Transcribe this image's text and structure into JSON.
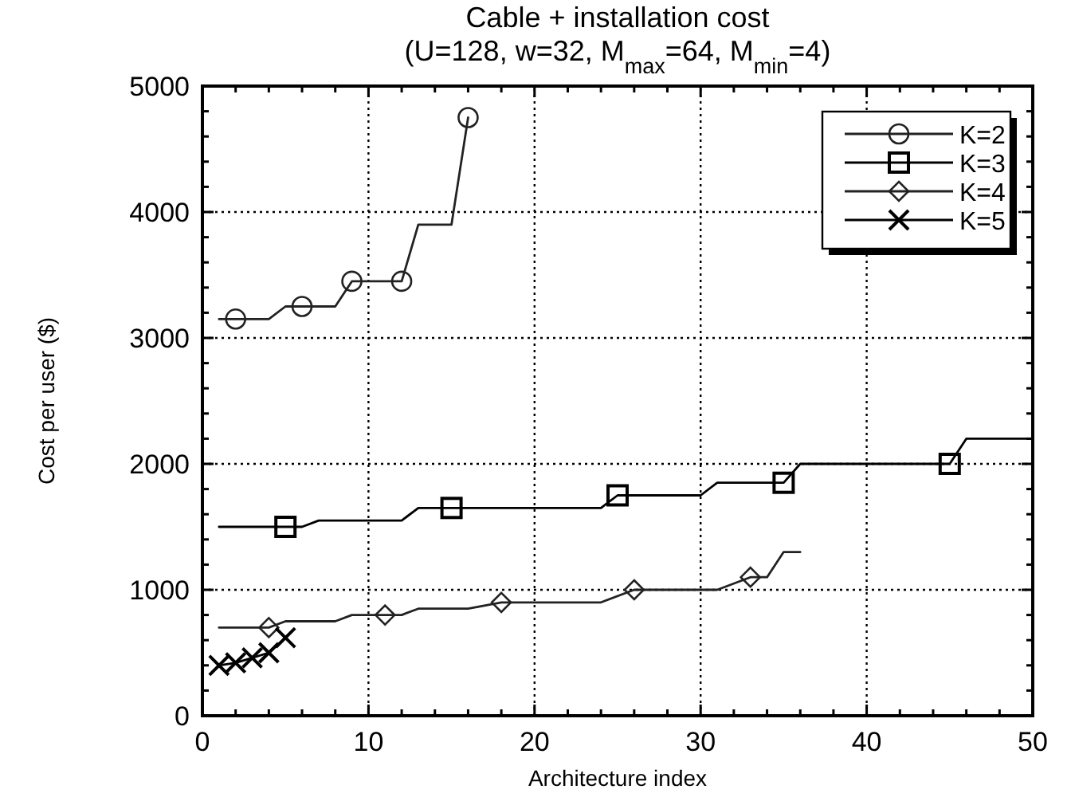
{
  "chart_data": {
    "type": "line",
    "title": "Cable + installation cost",
    "subtitle": "(U=128, w=32, M$_{max}$=64, M$_{min}$=4)",
    "xlabel": "Architecture index",
    "ylabel": "Cost per user ($)",
    "xlim": [
      0,
      50
    ],
    "ylim": [
      0,
      5000
    ],
    "xticks": [
      0,
      {
        "value": 2,
        "label": null
      },
      {
        "value": 4,
        "label": null
      },
      {
        "value": 6,
        "label": null
      },
      {
        "value": 8,
        "label": null
      },
      10,
      {
        "value": 12,
        "label": null
      },
      {
        "value": 14,
        "label": null
      },
      {
        "value": 16,
        "label": null
      },
      {
        "value": 18,
        "label": null
      },
      20,
      {
        "value": 22,
        "label": null
      },
      {
        "value": 24,
        "label": null
      },
      {
        "value": 26,
        "label": null
      },
      {
        "value": 28,
        "label": null
      },
      30,
      {
        "value": 32,
        "label": null
      },
      {
        "value": 34,
        "label": null
      },
      {
        "value": 36,
        "label": null
      },
      {
        "value": 38,
        "label": null
      },
      40,
      {
        "value": 42,
        "label": null
      },
      {
        "value": 44,
        "label": null
      },
      {
        "value": 46,
        "label": null
      },
      {
        "value": 48,
        "label": null
      },
      50
    ],
    "yticks": [
      0,
      {
        "value": 200,
        "label": null
      },
      {
        "value": 400,
        "label": null
      },
      {
        "value": 600,
        "label": null
      },
      {
        "value": 800,
        "label": null
      },
      1000,
      {
        "value": 1200,
        "label": null
      },
      {
        "value": 1400,
        "label": null
      },
      {
        "value": 1600,
        "label": null
      },
      {
        "value": 1800,
        "label": null
      },
      2000,
      {
        "value": 2200,
        "label": null
      },
      {
        "value": 2400,
        "label": null
      },
      {
        "value": 2600,
        "label": null
      },
      {
        "value": 2800,
        "label": null
      },
      3000,
      {
        "value": 3200,
        "label": null
      },
      {
        "value": 3400,
        "label": null
      },
      {
        "value": 3600,
        "label": null
      },
      {
        "value": 3800,
        "label": null
      },
      4000,
      {
        "value": 4200,
        "label": null
      },
      {
        "value": 4400,
        "label": null
      },
      {
        "value": 4600,
        "label": null
      },
      {
        "value": 4800,
        "label": null
      },
      5000
    ],
    "grid": true,
    "legend": "top right",
    "series": [
      {
        "name": "K=2",
        "color": "#222222",
        "marker": "none",
        "x": [
          1,
          2,
          4,
          5,
          6,
          8,
          9,
          12,
          13,
          15,
          16
        ],
        "values": [
          3150,
          3150,
          3150,
          3250,
          3250,
          3250,
          3450,
          3450,
          3900,
          3900,
          4750
        ]
      },
      {
        "type": "scatter",
        "color": "#222222",
        "marker": "circle",
        "x": [
          2,
          6,
          9,
          12,
          16
        ],
        "values": [
          3150,
          3250,
          3450,
          3450,
          4750
        ]
      },
      {
        "name": "K=3",
        "color": "#000000",
        "marker": "none",
        "x": [
          1,
          5,
          6,
          7,
          12,
          13,
          15,
          24,
          25,
          30,
          31,
          35,
          36,
          45,
          46,
          50
        ],
        "values": [
          1500,
          1500,
          1500,
          1550,
          1550,
          1650,
          1650,
          1650,
          1750,
          1750,
          1850,
          1850,
          2000,
          2000,
          2200,
          2200
        ]
      },
      {
        "type": "scatter",
        "color": "#000000",
        "marker": "square",
        "x": [
          5,
          15,
          25,
          35,
          45
        ],
        "values": [
          1500,
          1650,
          1750,
          1850,
          2000
        ]
      },
      {
        "name": "K=4",
        "color": "#222222",
        "marker": "none",
        "x": [
          1,
          4,
          5,
          8,
          9,
          11,
          12,
          13,
          16,
          18,
          24,
          26,
          31,
          33,
          34,
          35,
          36
        ],
        "values": [
          700,
          700,
          750,
          750,
          800,
          800,
          800,
          850,
          850,
          900,
          900,
          1000,
          1000,
          1100,
          1100,
          1300,
          1300
        ]
      },
      {
        "type": "scatter",
        "color": "#222222",
        "marker": "diamond",
        "x": [
          4,
          11,
          18,
          26,
          33
        ],
        "values": [
          700,
          800,
          900,
          1000,
          1100
        ]
      },
      {
        "name": "K=5",
        "color": "#000000",
        "marker": "none",
        "x": [
          1,
          2,
          3,
          4,
          5
        ],
        "values": [
          400,
          420,
          460,
          500,
          620
        ]
      },
      {
        "type": "scatter",
        "color": "#000000",
        "marker": "cross",
        "x": [
          1,
          2,
          3,
          4,
          5
        ],
        "values": [
          400,
          420,
          460,
          500,
          620
        ]
      }
    ]
  }
}
